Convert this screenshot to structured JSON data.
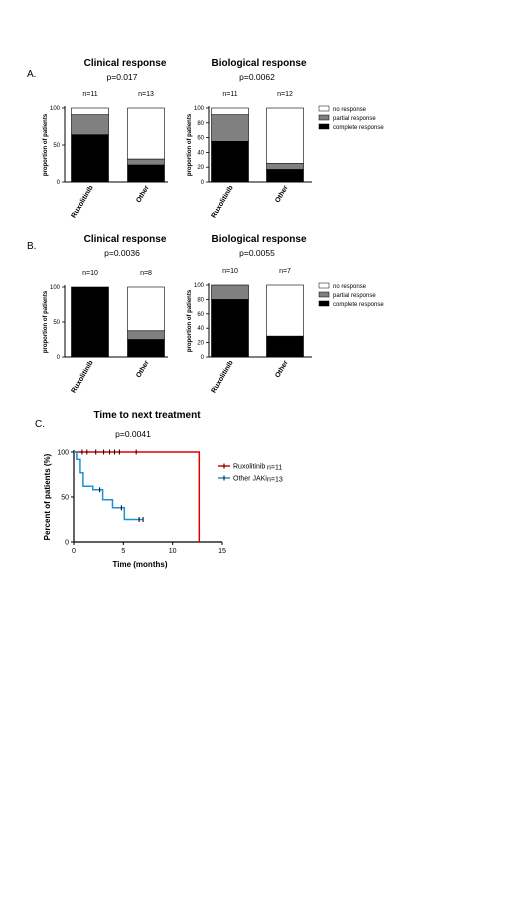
{
  "colors": {
    "complete": "#000000",
    "partial": "#808080",
    "none": "#ffffff",
    "ruxolitinib": "#e00000",
    "other": "#1e90d6"
  },
  "panels": [
    {
      "label": "A.",
      "charts": [
        {
          "title": "Clinical  response",
          "pvalue": "p=0.017",
          "ylabel": "proportion of patients",
          "yticks": [
            "0",
            "50",
            "100"
          ],
          "bars": [
            {
              "category": "Ruxolitinib",
              "n": "n=11",
              "complete": 64,
              "partial": 27,
              "none": 9
            },
            {
              "category": "Other",
              "n": "n=13",
              "complete": 23,
              "partial": 8,
              "none": 69
            }
          ]
        },
        {
          "title": "Biological response",
          "pvalue": "p=0.0062",
          "ylabel": "proportion of patients",
          "yticks": [
            "0",
            "20",
            "40",
            "60",
            "80",
            "100"
          ],
          "bars": [
            {
              "category": "Ruxolitinib",
              "n": "n=11",
              "complete": 55,
              "partial": 36,
              "none": 9
            },
            {
              "category": "Other",
              "n": "n=12",
              "complete": 17,
              "partial": 8,
              "none": 75
            }
          ]
        }
      ],
      "legend": [
        "no response",
        "partial response",
        "complete response"
      ]
    },
    {
      "label": "B.",
      "charts": [
        {
          "title": "Clinical  response",
          "pvalue": "p=0.0036",
          "ylabel": "proportion of patients",
          "yticks": [
            "0",
            "50",
            "100"
          ],
          "bars": [
            {
              "category": "Ruxolitinib",
              "n": "n=10",
              "complete": 100,
              "partial": 0,
              "none": 0
            },
            {
              "category": "Other",
              "n": "n=8",
              "complete": 25,
              "partial": 12.5,
              "none": 62.5
            }
          ]
        },
        {
          "title": "Biological response",
          "pvalue": "p=0.0055",
          "ylabel": "proportion of patients",
          "yticks": [
            "0",
            "20",
            "40",
            "60",
            "80",
            "100"
          ],
          "bars": [
            {
              "category": "Ruxolitinib",
              "n": "n=10",
              "complete": 80,
              "partial": 20,
              "none": 0
            },
            {
              "category": "Other",
              "n": "n=7",
              "complete": 29,
              "partial": 0,
              "none": 71
            }
          ]
        }
      ],
      "legend": [
        "no response",
        "partial response",
        "complete response"
      ]
    }
  ],
  "km": {
    "label": "C.",
    "title": "Time to next treatment",
    "pvalue": "p=0.0041",
    "ylabel": "Percent of patients (%)",
    "xlabel": "Time (months)",
    "xticks": [
      "0",
      "5",
      "10",
      "15"
    ],
    "yticks": [
      "0",
      "50",
      "100"
    ],
    "xlim": [
      0,
      15
    ],
    "ylim": [
      0,
      100
    ],
    "series": [
      {
        "name": "Ruxolitinib",
        "n": "n=11",
        "steps": [
          [
            0,
            100
          ],
          [
            12.7,
            100
          ],
          [
            12.7,
            0
          ]
        ],
        "censors": [
          [
            0.8,
            100
          ],
          [
            1.3,
            100
          ],
          [
            2.2,
            100
          ],
          [
            3.0,
            100
          ],
          [
            3.6,
            100
          ],
          [
            4.1,
            100
          ],
          [
            4.6,
            100
          ],
          [
            6.3,
            100
          ]
        ]
      },
      {
        "name": "Other JAKi",
        "n": "n=13",
        "steps": [
          [
            0,
            100
          ],
          [
            0.3,
            100
          ],
          [
            0.3,
            92
          ],
          [
            0.6,
            92
          ],
          [
            0.6,
            77
          ],
          [
            0.9,
            77
          ],
          [
            0.9,
            62
          ],
          [
            1.9,
            62
          ],
          [
            1.9,
            58
          ],
          [
            2.9,
            58
          ],
          [
            2.9,
            47
          ],
          [
            3.9,
            47
          ],
          [
            3.9,
            38
          ],
          [
            5.1,
            38
          ],
          [
            5.1,
            25
          ],
          [
            7.0,
            25
          ]
        ],
        "censors": [
          [
            2.6,
            58
          ],
          [
            4.8,
            38
          ],
          [
            6.6,
            25
          ],
          [
            7.0,
            25
          ]
        ]
      }
    ]
  }
}
